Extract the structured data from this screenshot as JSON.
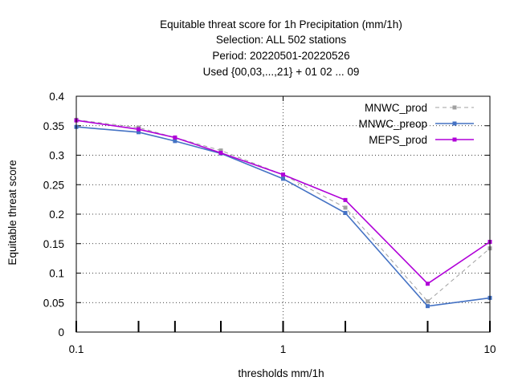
{
  "chart_data": {
    "type": "line",
    "title_lines": [
      "Equitable threat score  for 1h Precipitation (mm/1h)",
      "Selection: ALL    502 stations",
      "Period: 20220501-20220526",
      "Used {00,03,...,21} + 01 02 ... 09"
    ],
    "xlabel": "thresholds mm/1h",
    "ylabel": "Equitable threat score",
    "x_scale": "log",
    "xlim": [
      0.1,
      10
    ],
    "ylim": [
      0,
      0.4
    ],
    "x_ticks": [
      {
        "value": 0.1,
        "label": "0.1"
      },
      {
        "value": 1,
        "label": "1"
      },
      {
        "value": 10,
        "label": "10"
      }
    ],
    "y_ticks": [
      {
        "value": 0,
        "label": "0"
      },
      {
        "value": 0.05,
        "label": "0.05"
      },
      {
        "value": 0.1,
        "label": "0.1"
      },
      {
        "value": 0.15,
        "label": "0.15"
      },
      {
        "value": 0.2,
        "label": "0.2"
      },
      {
        "value": 0.25,
        "label": "0.25"
      },
      {
        "value": 0.3,
        "label": "0.3"
      },
      {
        "value": 0.35,
        "label": "0.35"
      },
      {
        "value": 0.4,
        "label": "0.4"
      }
    ],
    "threshold_marks": [
      0.1,
      0.2,
      0.3,
      0.5,
      1,
      2,
      5,
      10
    ],
    "grid": true,
    "legend_position": "top-right",
    "x": [
      0.1,
      0.2,
      0.3,
      0.5,
      1,
      2,
      5,
      10
    ],
    "series": [
      {
        "name": "MNWC_prod",
        "color": "#a0a0a0",
        "dash": true,
        "values": [
          0.36,
          0.347,
          0.33,
          0.308,
          0.267,
          0.211,
          0.052,
          0.142
        ]
      },
      {
        "name": "MNWC_preop",
        "color": "#4472c4",
        "dash": false,
        "values": [
          0.348,
          0.339,
          0.324,
          0.303,
          0.26,
          0.202,
          0.044,
          0.058
        ]
      },
      {
        "name": "MEPS_prod",
        "color": "#b000d8",
        "dash": false,
        "values": [
          0.359,
          0.344,
          0.33,
          0.304,
          0.267,
          0.224,
          0.082,
          0.153
        ]
      }
    ]
  }
}
